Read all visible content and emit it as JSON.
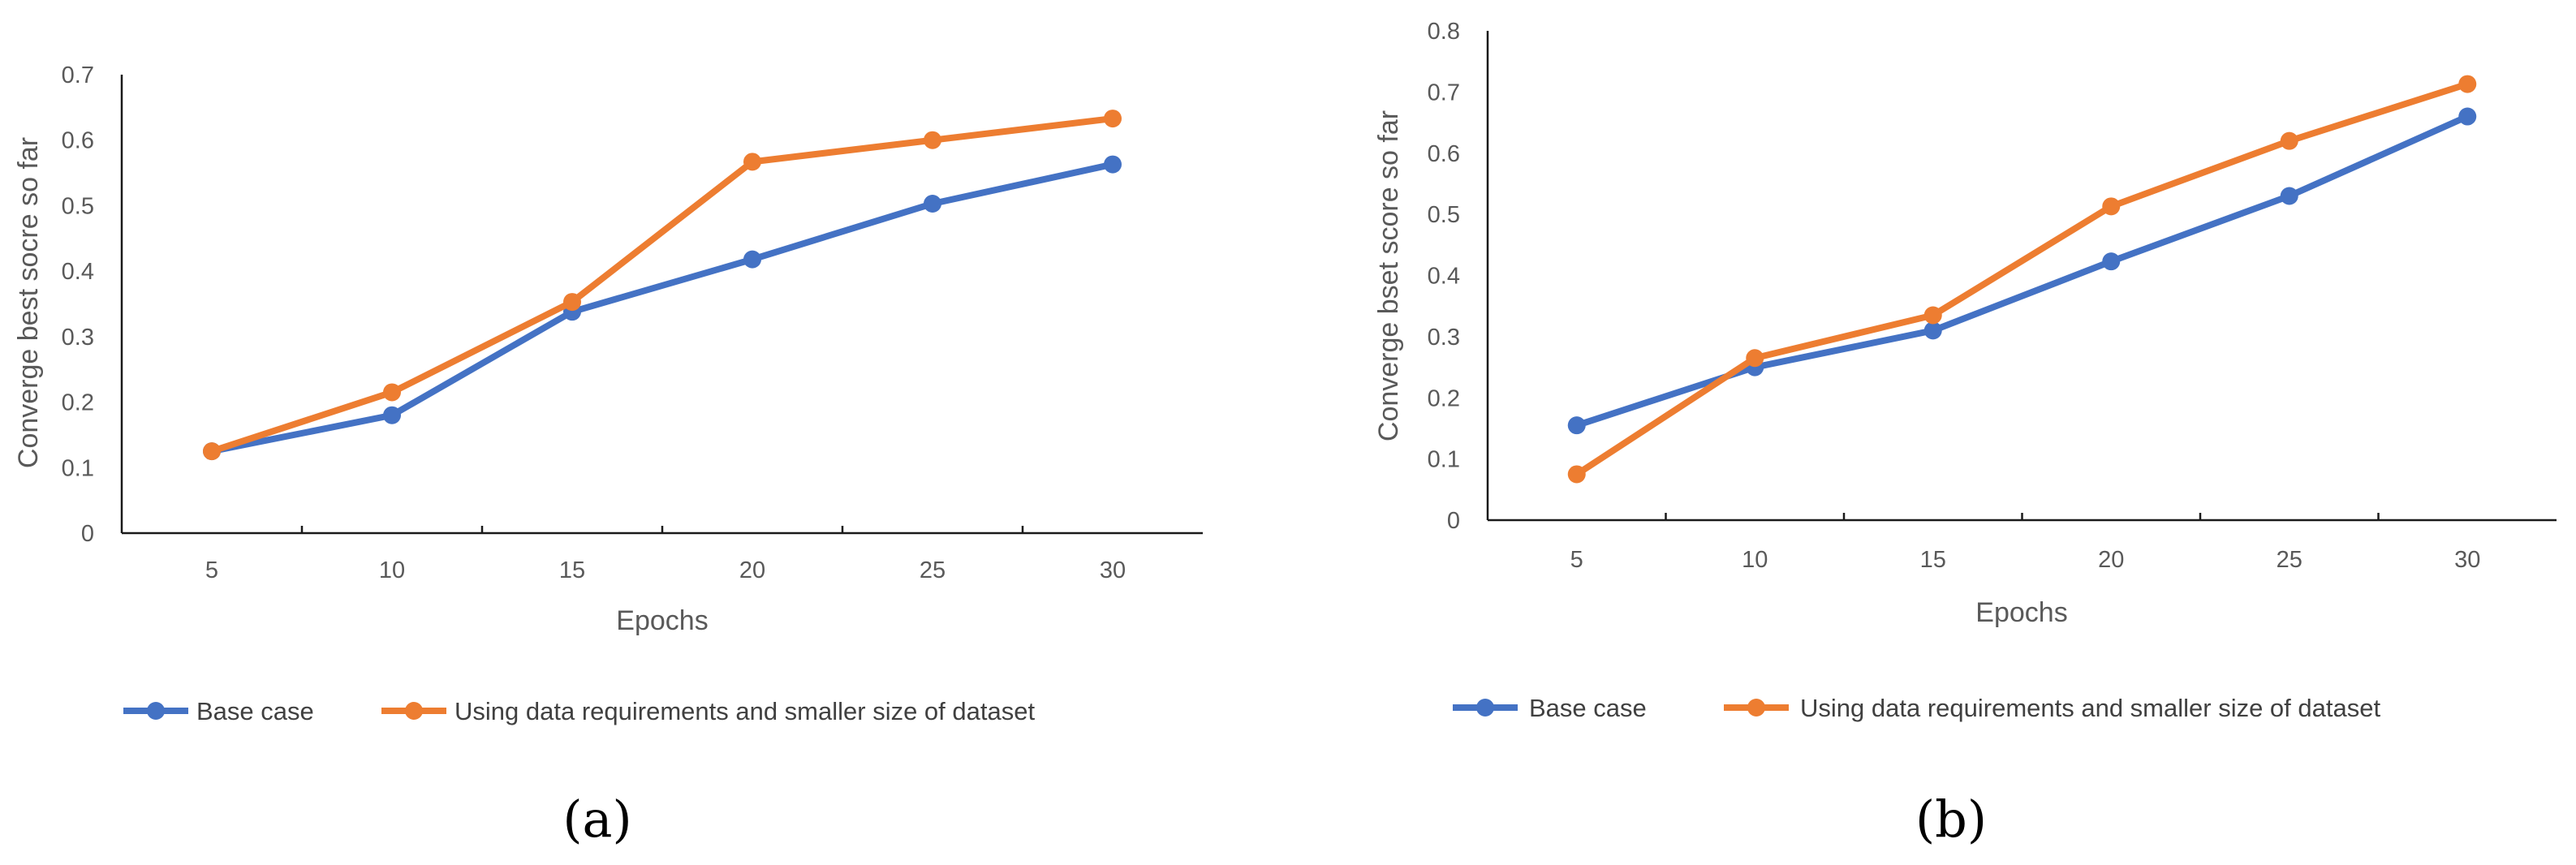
{
  "colors": {
    "base": "#4472C4",
    "reduced": "#ED7D31"
  },
  "chart_data": [
    {
      "type": "line",
      "panel_label": "(a)",
      "categories": [
        "5",
        "10",
        "15",
        "20",
        "25",
        "30"
      ],
      "series": [
        {
          "name": "Base case",
          "values": [
            0.125,
            0.18,
            0.338,
            0.418,
            0.503,
            0.563
          ]
        },
        {
          "name": "Using data requirements and smaller size of dataset",
          "values": [
            0.125,
            0.215,
            0.353,
            0.567,
            0.6,
            0.633
          ]
        }
      ],
      "ylim": [
        0,
        0.7
      ],
      "yticks": [
        "0",
        "0.1",
        "0.2",
        "0.3",
        "0.4",
        "0.5",
        "0.6",
        "0.7"
      ],
      "xlabel": "Epochs",
      "ylabel": "Converge best socre so far",
      "legend": "bottom"
    },
    {
      "type": "line",
      "panel_label": "(b)",
      "categories": [
        "5",
        "10",
        "15",
        "20",
        "25",
        "30"
      ],
      "series": [
        {
          "name": "Base case",
          "values": [
            0.155,
            0.25,
            0.31,
            0.423,
            0.53,
            0.66
          ]
        },
        {
          "name": "Using data requirements and smaller size of dataset",
          "values": [
            0.075,
            0.265,
            0.335,
            0.513,
            0.62,
            0.713
          ]
        }
      ],
      "ylim": [
        0,
        0.8
      ],
      "yticks": [
        "0",
        "0.1",
        "0.2",
        "0.3",
        "0.4",
        "0.5",
        "0.6",
        "0.7",
        "0.8"
      ],
      "xlabel": "Epochs",
      "ylabel": "Converge bset score so far",
      "legend": "bottom"
    }
  ]
}
